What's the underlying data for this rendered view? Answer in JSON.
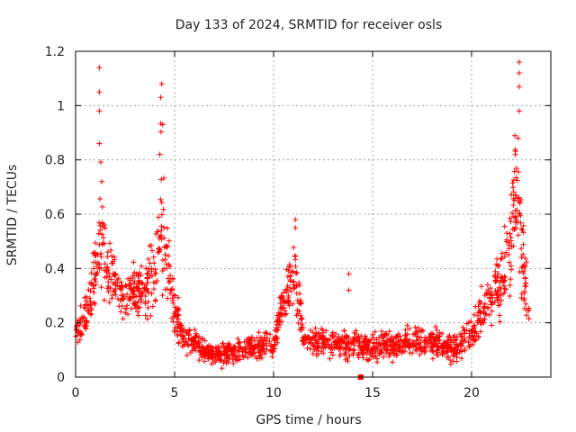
{
  "chart_data": {
    "type": "scatter",
    "title": "Day 133 of 2024, SRMTID for receiver osls",
    "xlabel": "GPS time / hours",
    "ylabel": "SRMTID / TECUs",
    "xlim": [
      0,
      24
    ],
    "ylim": [
      0,
      1.2
    ],
    "xticks": [
      0,
      5,
      10,
      15,
      20
    ],
    "yticks": [
      0,
      0.2,
      0.4,
      0.6,
      0.8,
      1,
      1.2
    ],
    "grid": true,
    "marker": "+",
    "color": "#ff0000",
    "outlier_marker": {
      "x": 14.4,
      "y": 0.0,
      "shape": "square"
    },
    "envelope": [
      {
        "x": 0.0,
        "y": 0.17,
        "spread": 0.05
      },
      {
        "x": 0.5,
        "y": 0.22,
        "spread": 0.06
      },
      {
        "x": 1.0,
        "y": 0.38,
        "spread": 0.12
      },
      {
        "x": 1.3,
        "y": 0.55,
        "spread": 0.22
      },
      {
        "x": 1.6,
        "y": 0.38,
        "spread": 0.1
      },
      {
        "x": 2.0,
        "y": 0.36,
        "spread": 0.09
      },
      {
        "x": 2.5,
        "y": 0.3,
        "spread": 0.08
      },
      {
        "x": 3.0,
        "y": 0.32,
        "spread": 0.08
      },
      {
        "x": 3.5,
        "y": 0.32,
        "spread": 0.08
      },
      {
        "x": 4.0,
        "y": 0.4,
        "spread": 0.12
      },
      {
        "x": 4.3,
        "y": 0.62,
        "spread": 0.22
      },
      {
        "x": 4.7,
        "y": 0.38,
        "spread": 0.1
      },
      {
        "x": 5.0,
        "y": 0.24,
        "spread": 0.07
      },
      {
        "x": 5.5,
        "y": 0.15,
        "spread": 0.05
      },
      {
        "x": 6.0,
        "y": 0.13,
        "spread": 0.04
      },
      {
        "x": 7.0,
        "y": 0.08,
        "spread": 0.03
      },
      {
        "x": 8.0,
        "y": 0.09,
        "spread": 0.03
      },
      {
        "x": 9.0,
        "y": 0.11,
        "spread": 0.04
      },
      {
        "x": 10.0,
        "y": 0.12,
        "spread": 0.04
      },
      {
        "x": 10.5,
        "y": 0.28,
        "spread": 0.07
      },
      {
        "x": 11.1,
        "y": 0.38,
        "spread": 0.1
      },
      {
        "x": 11.5,
        "y": 0.15,
        "spread": 0.04
      },
      {
        "x": 12.0,
        "y": 0.13,
        "spread": 0.04
      },
      {
        "x": 13.0,
        "y": 0.12,
        "spread": 0.04
      },
      {
        "x": 14.0,
        "y": 0.12,
        "spread": 0.04
      },
      {
        "x": 15.0,
        "y": 0.11,
        "spread": 0.04
      },
      {
        "x": 16.0,
        "y": 0.12,
        "spread": 0.04
      },
      {
        "x": 17.0,
        "y": 0.13,
        "spread": 0.04
      },
      {
        "x": 18.0,
        "y": 0.13,
        "spread": 0.04
      },
      {
        "x": 19.0,
        "y": 0.1,
        "spread": 0.04
      },
      {
        "x": 20.0,
        "y": 0.16,
        "spread": 0.05
      },
      {
        "x": 20.5,
        "y": 0.24,
        "spread": 0.06
      },
      {
        "x": 21.0,
        "y": 0.3,
        "spread": 0.08
      },
      {
        "x": 21.5,
        "y": 0.35,
        "spread": 0.09
      },
      {
        "x": 22.0,
        "y": 0.5,
        "spread": 0.15
      },
      {
        "x": 22.3,
        "y": 0.75,
        "spread": 0.22
      },
      {
        "x": 22.7,
        "y": 0.35,
        "spread": 0.1
      },
      {
        "x": 22.9,
        "y": 0.25,
        "spread": 0.07
      }
    ],
    "peaks": [
      {
        "x": 1.2,
        "y": 1.14
      },
      {
        "x": 1.2,
        "y": 1.05
      },
      {
        "x": 1.2,
        "y": 0.98
      },
      {
        "x": 1.2,
        "y": 0.86
      },
      {
        "x": 4.35,
        "y": 1.08
      },
      {
        "x": 4.3,
        "y": 1.03
      },
      {
        "x": 4.4,
        "y": 0.93
      },
      {
        "x": 11.1,
        "y": 0.58
      },
      {
        "x": 11.1,
        "y": 0.55
      },
      {
        "x": 13.8,
        "y": 0.38
      },
      {
        "x": 13.8,
        "y": 0.32
      },
      {
        "x": 22.4,
        "y": 1.16
      },
      {
        "x": 22.4,
        "y": 1.12
      },
      {
        "x": 22.4,
        "y": 1.07
      },
      {
        "x": 22.4,
        "y": 0.98
      },
      {
        "x": 22.35,
        "y": 0.88
      }
    ]
  }
}
